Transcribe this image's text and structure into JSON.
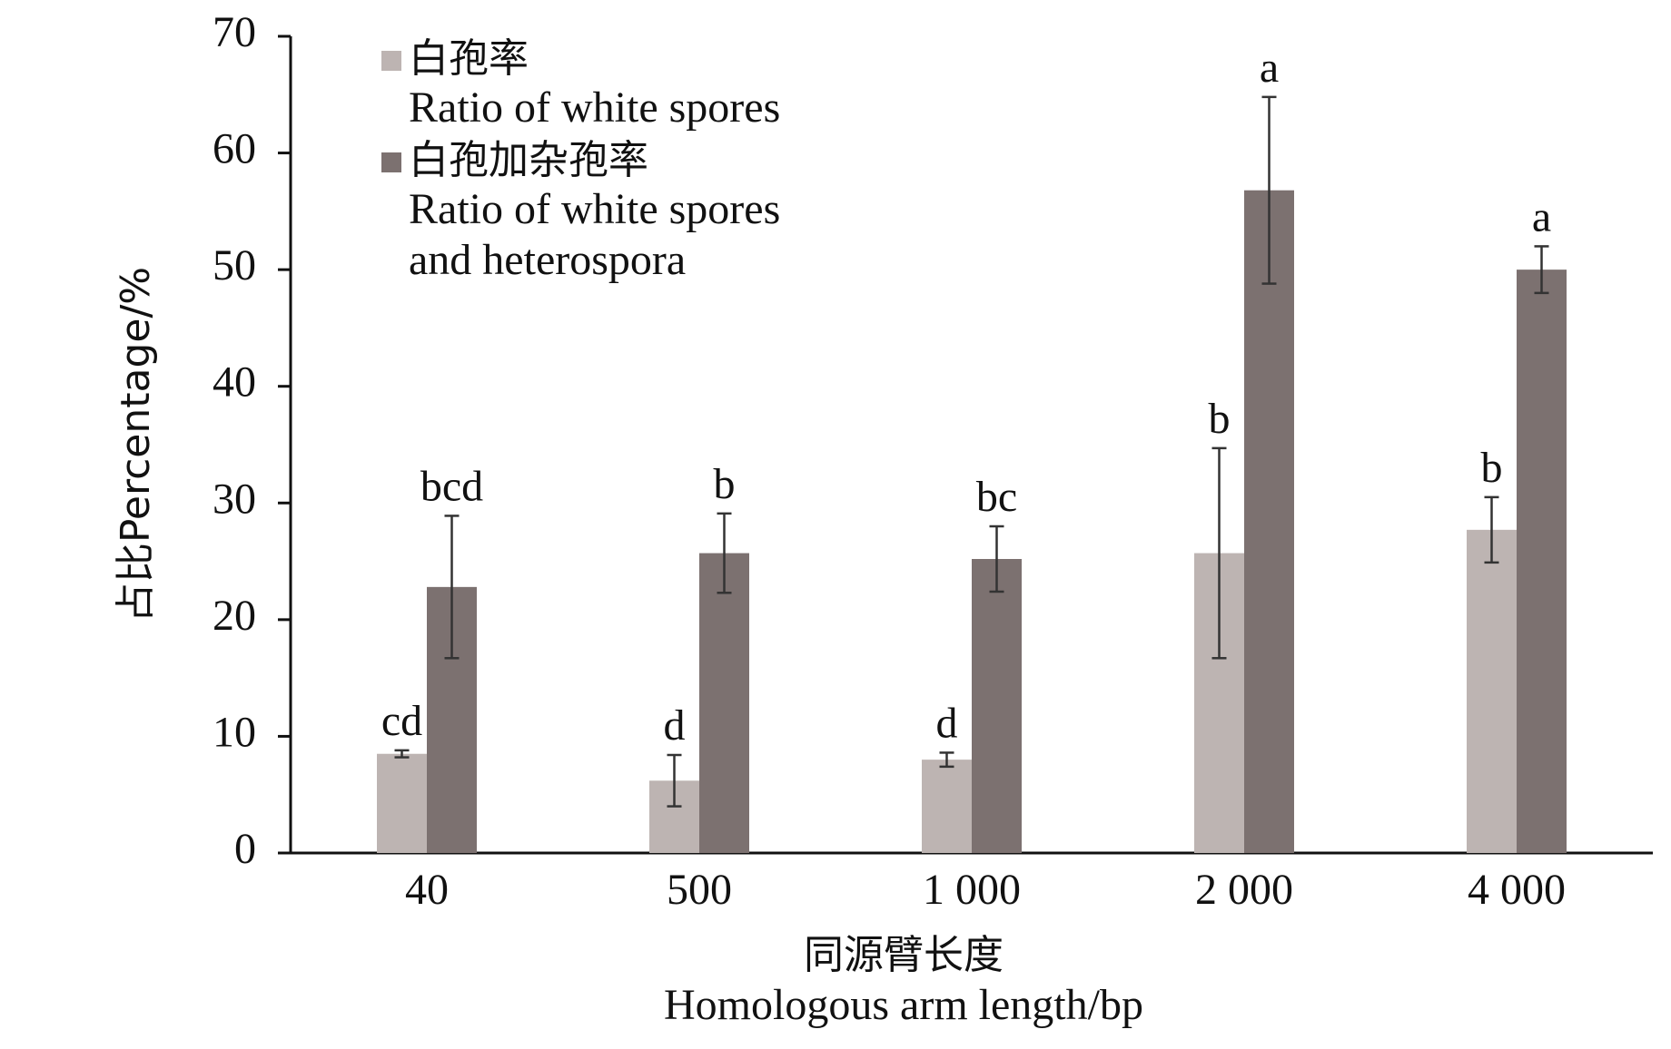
{
  "chart_data": {
    "type": "bar",
    "y_label": "占比Percentage/%",
    "x_label": [
      "同源臂长度",
      "Homologous arm length/bp"
    ],
    "categories": [
      "40",
      "500",
      "1 000",
      "2 000",
      "4 000"
    ],
    "series": [
      {
        "name": "白孢率",
        "name_en": [
          "Ratio of white spores"
        ],
        "color": "#bdb4b2",
        "values": [
          8.5,
          6.2,
          8.0,
          25.7,
          27.7
        ],
        "errors": [
          0.3,
          2.2,
          0.6,
          9.0,
          2.8
        ],
        "labels": [
          "cd",
          "d",
          "d",
          "b",
          "b"
        ]
      },
      {
        "name": "白孢加杂孢率",
        "name_en": [
          "Ratio of white spores",
          "and heterospora"
        ],
        "color": "#7c7170",
        "values": [
          22.8,
          25.7,
          25.2,
          56.8,
          50.0
        ],
        "errors": [
          6.1,
          3.4,
          2.8,
          8.0,
          2.0
        ],
        "labels": [
          "bcd",
          "b",
          "bc",
          "a",
          "a"
        ]
      }
    ],
    "ylim": [
      0,
      70
    ],
    "yticks": [
      0,
      10,
      20,
      30,
      40,
      50,
      60,
      70
    ]
  }
}
